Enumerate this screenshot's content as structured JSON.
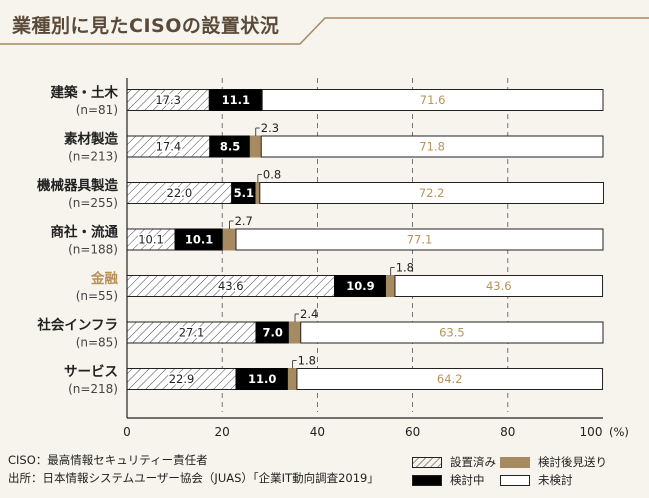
{
  "title": "業種別に見たCISOの設置状況",
  "colors": {
    "installed": "#ffffff",
    "considering": "#000000",
    "postponed": "#a68a62",
    "not_considered": "#ffffff",
    "highlight_label": "#b8925a",
    "accent": "#a68a62"
  },
  "chart_data": {
    "type": "bar",
    "orientation": "horizontal",
    "stacked": true,
    "categories": [
      "建築・土木",
      "素材製造",
      "機械器具製造",
      "商社・流通",
      "金融",
      "社会インフラ",
      "サービス"
    ],
    "n_labels": [
      "(n=81)",
      "(n=213)",
      "(n=255)",
      "(n=188)",
      "(n=55)",
      "(n=85)",
      "(n=218)"
    ],
    "highlight": [
      "金融"
    ],
    "series": [
      {
        "name": "設置済み",
        "values": [
          17.3,
          17.4,
          22.0,
          10.1,
          43.6,
          27.1,
          22.9
        ]
      },
      {
        "name": "検討中",
        "values": [
          11.1,
          8.5,
          5.1,
          10.1,
          10.9,
          7.0,
          11.0
        ]
      },
      {
        "name": "検討後見送り",
        "values": [
          0,
          2.3,
          0.8,
          2.7,
          1.8,
          2.4,
          1.8
        ]
      },
      {
        "name": "未検討",
        "values": [
          71.6,
          71.8,
          72.2,
          77.1,
          43.6,
          63.5,
          64.2
        ]
      }
    ],
    "xlim": [
      0,
      100
    ],
    "xticks": [
      "0",
      "20",
      "40",
      "60",
      "80",
      "100"
    ],
    "x_unit": "(%)",
    "grid": "dashed vertical"
  },
  "notes": {
    "line1": "CISO：最高情報セキュリティー責任者",
    "line2": "出所：日本情報システムユーザー協会（JUAS）「企業IT動向調査2019」"
  }
}
